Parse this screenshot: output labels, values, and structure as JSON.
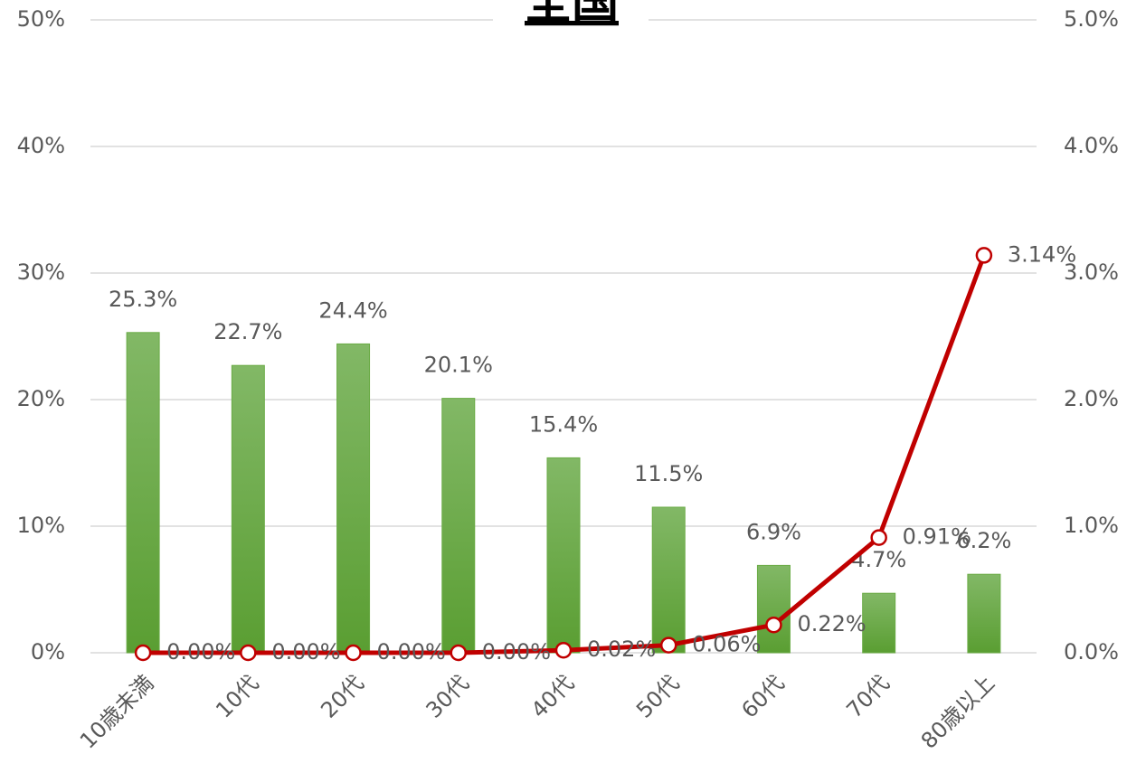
{
  "chart_data": {
    "type": "bar",
    "title": "全国",
    "categories": [
      "10歳未満",
      "10代",
      "20代",
      "30代",
      "40代",
      "50代",
      "60代",
      "70代",
      "80歳以上"
    ],
    "series": [
      {
        "type": "bar",
        "color": "#6aab45",
        "values": [
          25.3,
          22.7,
          24.4,
          20.1,
          15.4,
          11.5,
          6.9,
          4.7,
          6.2
        ],
        "value_labels": [
          "25.3%",
          "22.7%",
          "24.4%",
          "20.1%",
          "15.4%",
          "11.5%",
          "6.9%",
          "4.7%",
          "6.2%"
        ]
      },
      {
        "type": "line",
        "axis": "y2",
        "color": "#c00000",
        "values": [
          0.0,
          0.0,
          0.0,
          0.0,
          0.02,
          0.06,
          0.22,
          0.91,
          3.14
        ],
        "value_labels": [
          "0.00%",
          "0.00%",
          "0.00%",
          "0.00%",
          "0.02%",
          "0.06%",
          "0.22%",
          "0.91%",
          "3.14%"
        ]
      }
    ],
    "ylim": [
      0,
      50
    ],
    "yticks": [
      {
        "value": 0,
        "label": "0%"
      },
      {
        "value": 10,
        "label": "10%"
      },
      {
        "value": 20,
        "label": "20%"
      },
      {
        "value": 30,
        "label": "30%"
      },
      {
        "value": 40,
        "label": "40%"
      },
      {
        "value": 50,
        "label": "50%"
      }
    ],
    "y2lim": [
      0,
      5
    ],
    "y2ticks": [
      {
        "value": 0,
        "label": "0.0%"
      },
      {
        "value": 1,
        "label": "1.0%"
      },
      {
        "value": 2,
        "label": "2.0%"
      },
      {
        "value": 3,
        "label": "3.0%"
      },
      {
        "value": 4,
        "label": "4.0%"
      },
      {
        "value": 5,
        "label": "5.0%"
      }
    ],
    "grid": true
  }
}
